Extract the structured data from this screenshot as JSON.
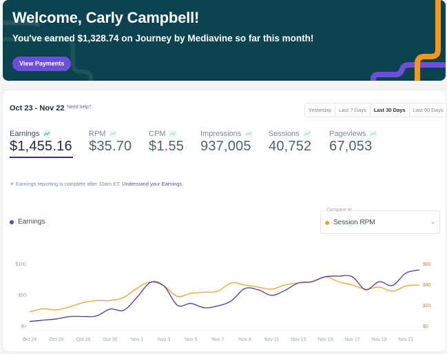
{
  "banner": {
    "title": "Welcome, Carly Campbell!",
    "subtitle": "You've earned $1,328.74 on Journey by Mediavine so far this month!",
    "button_label": "View Payments",
    "background_color": "#0d4250",
    "button_color": "#6b4fd8"
  },
  "summary": {
    "date_range": "Oct 23 - Nov 22",
    "help_link": "Need help?",
    "range_options": [
      {
        "label": "Yesterday",
        "active": false
      },
      {
        "label": "Last 7 Days",
        "active": false
      },
      {
        "label": "Last 30 Days",
        "active": true
      },
      {
        "label": "Last 90 Days",
        "active": false
      }
    ],
    "metrics": [
      {
        "label": "Earnings",
        "value": "$1,455.16",
        "active": true,
        "trend": "trending-up-icon"
      },
      {
        "label": "RPM",
        "value": "$35.70",
        "active": false,
        "trend": "trending-up-icon"
      },
      {
        "label": "CPM",
        "value": "$1.55",
        "active": false,
        "trend": "trending-up-icon"
      },
      {
        "label": "Impressions",
        "value": "937,005",
        "active": false,
        "trend": "trending-up-icon"
      },
      {
        "label": "Sessions",
        "value": "40,752",
        "active": false,
        "trend": "trending-up-icon"
      },
      {
        "label": "Pageviews",
        "value": "67,053",
        "active": false,
        "trend": "trending-up-icon"
      }
    ],
    "note_text": "Earnings reporting is complete after 10am ET.",
    "note_link": "Understand your Earnings."
  },
  "chart_controls": {
    "legend_label": "Earnings",
    "compare_label": "Compare to",
    "compare_value": "Session RPM"
  },
  "colors": {
    "earnings": "#4a3aa8",
    "session_rpm": "#e8a52a",
    "accent_purple": "#6b4fd8",
    "accent_orange": "#f5961e"
  },
  "chart_data": {
    "type": "line",
    "title": "",
    "x": [
      "Oct 24",
      "Oct 25",
      "Oct 26",
      "Oct 27",
      "Oct 28",
      "Oct 29",
      "Oct 30",
      "Oct 31",
      "Nov 1",
      "Nov 2",
      "Nov 3",
      "Nov 4",
      "Nov 5",
      "Nov 6",
      "Nov 7",
      "Nov 8",
      "Nov 9",
      "Nov 10",
      "Nov 11",
      "Nov 12",
      "Nov 13",
      "Nov 14",
      "Nov 15",
      "Nov 16",
      "Nov 17",
      "Nov 18",
      "Nov 19",
      "Nov 20",
      "Nov 21",
      "Nov 22"
    ],
    "x_tick_labels": [
      "Oct 24",
      "Oct 26",
      "Oct 28",
      "Oct 30",
      "Nov 1",
      "Nov 3",
      "Nov 5",
      "Nov 7",
      "Nov 9",
      "Nov 11",
      "Nov 13",
      "Nov 15",
      "Nov 17",
      "Nov 19",
      "Nov 21"
    ],
    "series": [
      {
        "name": "Earnings",
        "axis": "left",
        "values": [
          8,
          10,
          12,
          16,
          16,
          17,
          28,
          26,
          47,
          71,
          65,
          34,
          37,
          30,
          33,
          41,
          61,
          59,
          50,
          58,
          70,
          72,
          80,
          81,
          80,
          59,
          72,
          66,
          86,
          91
        ]
      },
      {
        "name": "Session RPM",
        "axis": "right",
        "values": [
          14,
          17,
          16,
          19,
          23,
          25,
          25,
          28,
          37,
          43,
          39,
          29,
          32,
          33,
          34,
          42,
          40,
          38,
          36,
          40,
          42,
          43,
          48,
          43,
          40,
          36,
          38,
          34,
          39,
          40
        ]
      }
    ],
    "y_left": {
      "label": "",
      "ticks": [
        "$0",
        "$50",
        "$100"
      ],
      "ylim": [
        0,
        100
      ]
    },
    "y_right": {
      "label": "",
      "ticks": [
        "$0",
        "$20",
        "$40",
        "$60"
      ],
      "ylim": [
        0,
        60
      ]
    },
    "grid": false,
    "legend": "top-left"
  }
}
